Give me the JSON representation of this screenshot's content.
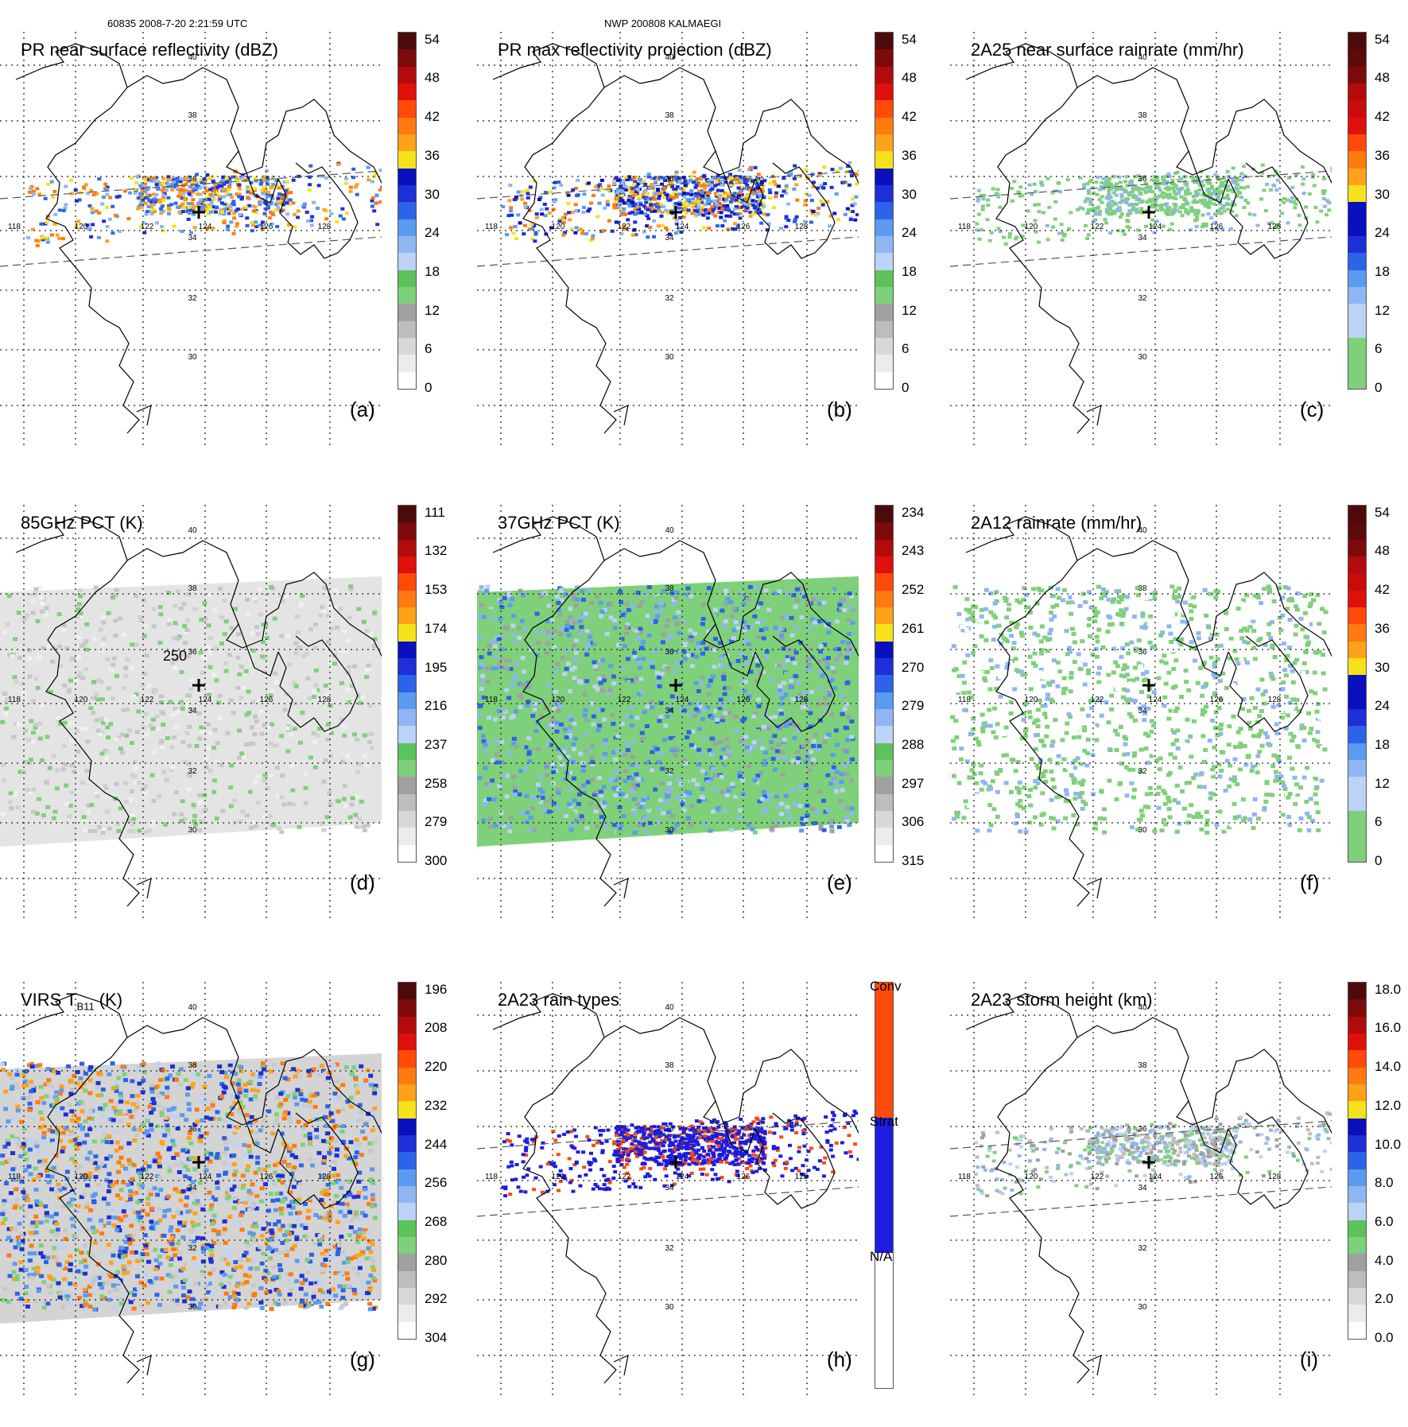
{
  "header": {
    "orbit": "60835 2008-7-20 2:21:59 UTC",
    "storm": "NWP 200808 KALMAEGI"
  },
  "lat_labels": [
    "40",
    "38",
    "36",
    "34",
    "32",
    "30"
  ],
  "lon_labels": [
    "118",
    "120",
    "122",
    "124",
    "126",
    "128"
  ],
  "panels": [
    {
      "id": "a",
      "title": "PR near surface reflectivity (dBZ)",
      "label": "(a)",
      "field": "swath-narrow",
      "colorbar": {
        "ticks": [
          "0",
          "6",
          "12",
          "18",
          "24",
          "30",
          "36",
          "42",
          "48",
          "54"
        ],
        "colors": [
          "#ffffff",
          "#ececec",
          "#d8d8d8",
          "#bdbdbd",
          "#a0a0a0",
          "#7fd07a",
          "#5cc35a",
          "#bcd2f7",
          "#8fb6f2",
          "#5a9bef",
          "#2d63e8",
          "#1d2fd6",
          "#0a10bd",
          "#f5e21a",
          "#ffa21a",
          "#ff7a10",
          "#ff4a0a",
          "#e0100a",
          "#b10b0b",
          "#7d0a0a",
          "#4d0a0a"
        ]
      }
    },
    {
      "id": "b",
      "title": "PR max reflectivity projection (dBZ)",
      "label": "(b)",
      "field": "swath-narrow",
      "colorbar": {
        "ticks": [
          "0",
          "6",
          "12",
          "18",
          "24",
          "30",
          "36",
          "42",
          "48",
          "54"
        ],
        "colors": [
          "#ffffff",
          "#ececec",
          "#d8d8d8",
          "#bdbdbd",
          "#a0a0a0",
          "#7fd07a",
          "#5cc35a",
          "#bcd2f7",
          "#8fb6f2",
          "#5a9bef",
          "#2d63e8",
          "#1d2fd6",
          "#0a10bd",
          "#f5e21a",
          "#ffa21a",
          "#ff7a10",
          "#ff4a0a",
          "#e0100a",
          "#b10b0b",
          "#7d0a0a",
          "#4d0a0a"
        ]
      }
    },
    {
      "id": "c",
      "title": "2A25 near surface rainrate (mm/hr)",
      "label": "(c)",
      "field": "swath-narrow",
      "colorbar": {
        "ticks": [
          "0",
          "6",
          "12",
          "18",
          "24",
          "30",
          "36",
          "42",
          "48",
          "54"
        ],
        "colors": [
          "#7fd07a",
          "#7fd07a",
          "#7fd07a",
          "#bcd2f7",
          "#bcd2f7",
          "#8fb6f2",
          "#5a9bef",
          "#2d63e8",
          "#1d2fd6",
          "#0a10bd",
          "#0a10bd",
          "#f5e21a",
          "#ffa21a",
          "#ff7a10",
          "#ff4a0a",
          "#e0100a",
          "#c80c0a",
          "#b10b0b",
          "#7d0a0a",
          "#5d0a0a",
          "#4d0a0a"
        ]
      }
    },
    {
      "id": "d",
      "title": "85GHz PCT (K)",
      "label": "(d)",
      "annotation": "250",
      "field": "swath-wide-gray",
      "colorbar": {
        "ticks": [
          "300",
          "279",
          "258",
          "237",
          "216",
          "195",
          "174",
          "153",
          "132",
          "111"
        ],
        "colors": [
          "#ffffff",
          "#ececec",
          "#d8d8d8",
          "#bdbdbd",
          "#a0a0a0",
          "#7fd07a",
          "#5cc35a",
          "#bcd2f7",
          "#8fb6f2",
          "#5a9bef",
          "#2d63e8",
          "#1d2fd6",
          "#0a10bd",
          "#f5e21a",
          "#ffa21a",
          "#ff7a10",
          "#ff4a0a",
          "#e0100a",
          "#b10b0b",
          "#7d0a0a",
          "#4d0a0a"
        ]
      }
    },
    {
      "id": "e",
      "title": "37GHz PCT (K)",
      "label": "(e)",
      "field": "swath-wide-green",
      "colorbar": {
        "ticks": [
          "315",
          "306",
          "297",
          "288",
          "279",
          "270",
          "261",
          "252",
          "243",
          "234"
        ],
        "colors": [
          "#ffffff",
          "#ececec",
          "#d8d8d8",
          "#bdbdbd",
          "#a0a0a0",
          "#7fd07a",
          "#5cc35a",
          "#bcd2f7",
          "#8fb6f2",
          "#5a9bef",
          "#2d63e8",
          "#1d2fd6",
          "#0a10bd",
          "#f5e21a",
          "#ffa21a",
          "#ff7a10",
          "#ff4a0a",
          "#e0100a",
          "#b10b0b",
          "#7d0a0a",
          "#4d0a0a"
        ]
      }
    },
    {
      "id": "f",
      "title": "2A12 rainrate (mm/hr)",
      "label": "(f)",
      "field": "swath-wide-rain",
      "colorbar": {
        "ticks": [
          "0",
          "6",
          "12",
          "18",
          "24",
          "30",
          "36",
          "42",
          "48",
          "54"
        ],
        "colors": [
          "#7fd07a",
          "#7fd07a",
          "#7fd07a",
          "#bcd2f7",
          "#bcd2f7",
          "#8fb6f2",
          "#5a9bef",
          "#2d63e8",
          "#1d2fd6",
          "#0a10bd",
          "#0a10bd",
          "#f5e21a",
          "#ffa21a",
          "#ff7a10",
          "#ff4a0a",
          "#e0100a",
          "#c80c0a",
          "#b10b0b",
          "#7d0a0a",
          "#5d0a0a",
          "#4d0a0a"
        ]
      }
    },
    {
      "id": "g",
      "title_main": "VIRS T",
      "title_sub": "B11",
      "title_unit": " (K)",
      "label": "(g)",
      "field": "swath-wide-virs",
      "colorbar": {
        "ticks": [
          "304",
          "292",
          "280",
          "268",
          "256",
          "244",
          "232",
          "220",
          "208",
          "196"
        ],
        "colors": [
          "#ffffff",
          "#ececec",
          "#d8d8d8",
          "#bdbdbd",
          "#a0a0a0",
          "#7fd07a",
          "#5cc35a",
          "#bcd2f7",
          "#8fb6f2",
          "#5a9bef",
          "#2d63e8",
          "#1d2fd6",
          "#0a10bd",
          "#f5e21a",
          "#ffa21a",
          "#ff7a10",
          "#ff4a0a",
          "#e0100a",
          "#b10b0b",
          "#7d0a0a",
          "#4d0a0a"
        ]
      }
    },
    {
      "id": "h",
      "title": "2A23 rain types",
      "label": "(h)",
      "field": "swath-narrow-types",
      "categories": [
        "N/A",
        "Strat",
        "Conv"
      ],
      "category_colors": [
        "#ffffff",
        "#1d1de0",
        "#ff4a0a"
      ]
    },
    {
      "id": "i",
      "title": "2A23 storm height (km)",
      "label": "(i)",
      "field": "swath-narrow-height",
      "colorbar": {
        "ticks": [
          "0.0",
          "2.0",
          "4.0",
          "6.0",
          "8.0",
          "10.0",
          "12.0",
          "14.0",
          "16.0",
          "18.0"
        ],
        "colors": [
          "#ffffff",
          "#ececec",
          "#d8d8d8",
          "#bdbdbd",
          "#a0a0a0",
          "#7fd07a",
          "#5cc35a",
          "#bcd2f7",
          "#8fb6f2",
          "#5a9bef",
          "#2d63e8",
          "#1d2fd6",
          "#0a10bd",
          "#f5e21a",
          "#ffa21a",
          "#ff7a10",
          "#ff4a0a",
          "#e0100a",
          "#b10b0b",
          "#7d0a0a",
          "#4d0a0a"
        ]
      }
    }
  ]
}
